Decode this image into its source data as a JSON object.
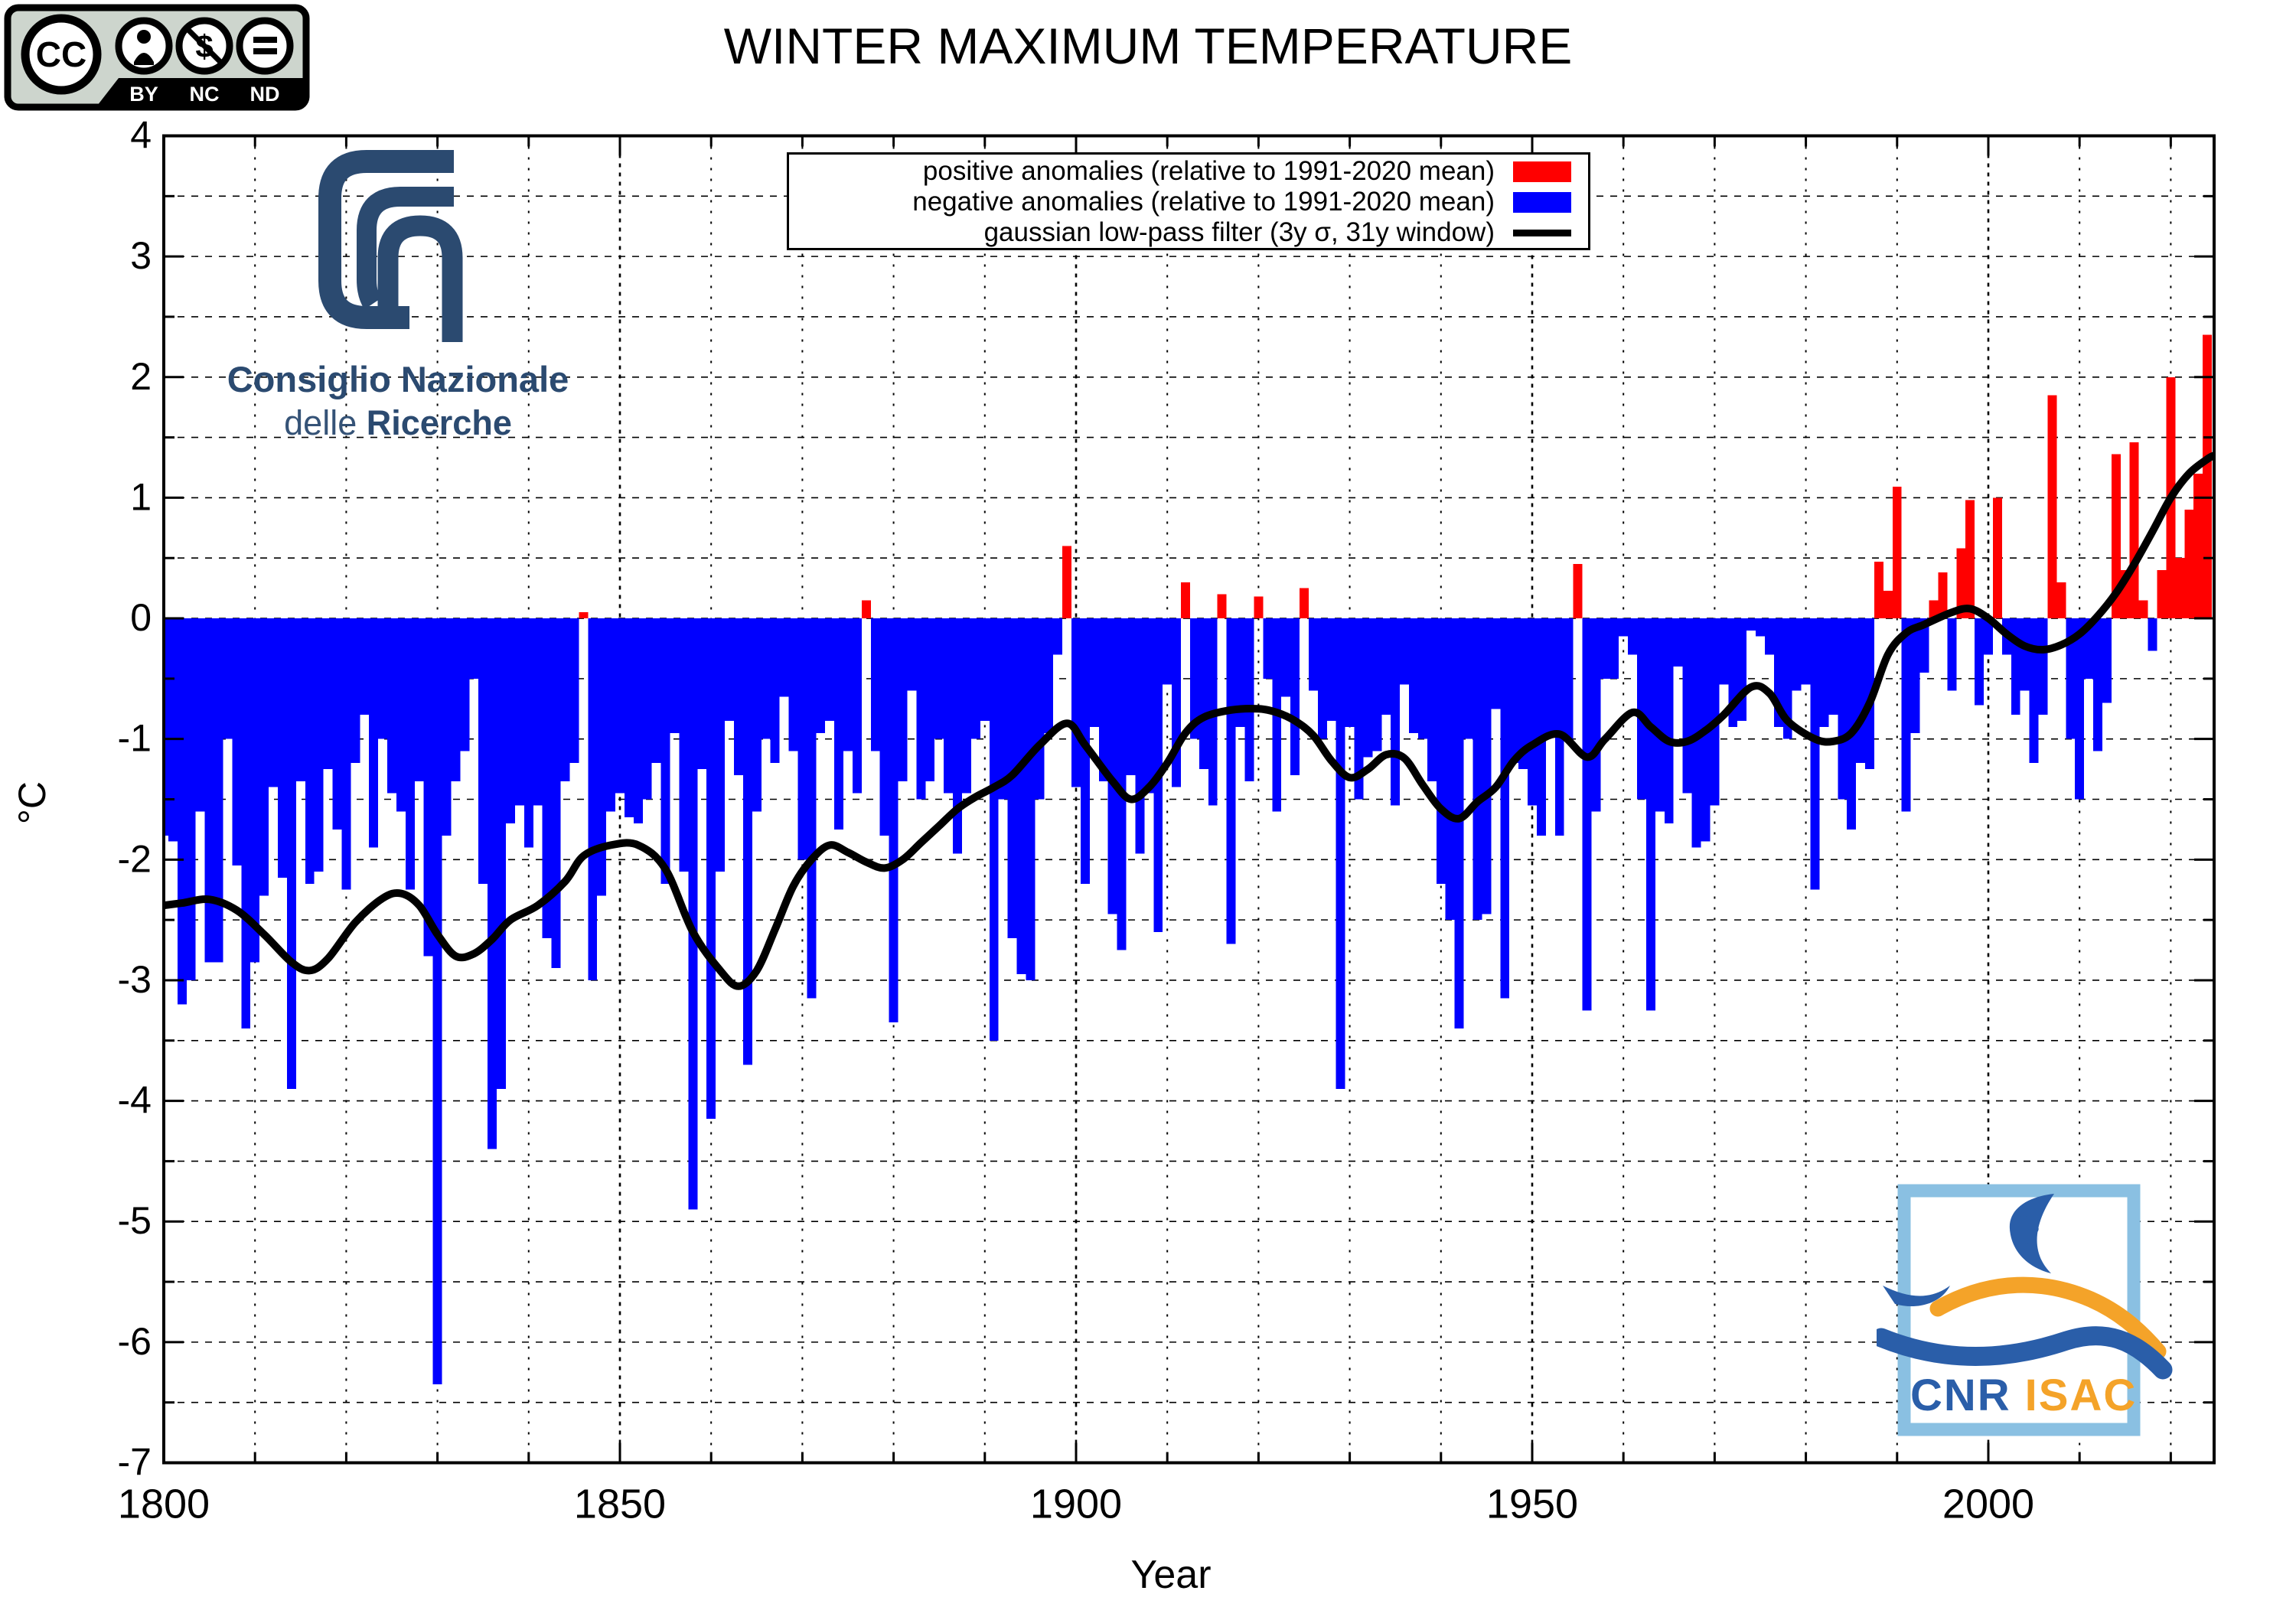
{
  "header": {
    "title": "WINTER MAXIMUM TEMPERATURE"
  },
  "license_badge": {
    "cc": "CC",
    "by": "BY",
    "nc": "NC",
    "nd": "ND"
  },
  "cnr_logo": {
    "line1": "Consiglio Nazionale",
    "line2_light": "delle",
    "line2_bold": "Ricerche"
  },
  "isac_logo": {
    "cnr": "CNR",
    "isac": "ISAC"
  },
  "axes": {
    "y_label": "°C",
    "x_label": "Year",
    "y_ticks": [
      4,
      3,
      2,
      1,
      0,
      -1,
      -2,
      -3,
      -4,
      -5,
      -6,
      -7
    ],
    "x_ticks": [
      1800,
      1850,
      1900,
      1950,
      2000
    ]
  },
  "legend": {
    "entries": [
      {
        "label": "positive anomalies (relative to 1991-2020 mean)",
        "color": "#ff0000",
        "swatch": "box"
      },
      {
        "label": "negative anomalies (relative to 1991-2020 mean)",
        "color": "#0000ff",
        "swatch": "box"
      },
      {
        "label": "gaussian low-pass filter (3y σ, 31y window)",
        "color": "#000000",
        "swatch": "line"
      }
    ]
  },
  "chart_data": {
    "type": "bar",
    "title": "WINTER MAXIMUM TEMPERATURE",
    "xlabel": "Year",
    "ylabel": "°C",
    "xlim": [
      1800,
      2024.75
    ],
    "ylim": [
      -7,
      4
    ],
    "grid": "dashed, every 0.5 °C horizontal, every 10 years vertical",
    "legend_position": "top center",
    "colors": {
      "positive": "#ff0000",
      "negative": "#0000ff",
      "filter_line": "#000000"
    },
    "year_start": 1800,
    "values": [
      -1.8,
      -1.85,
      -3.2,
      -3.0,
      -1.6,
      -2.85,
      -2.85,
      -1.0,
      -2.05,
      -3.4,
      -2.85,
      -2.3,
      -1.4,
      -2.15,
      -3.9,
      -1.35,
      -2.2,
      -2.1,
      -1.25,
      -1.75,
      -2.25,
      -1.2,
      -0.8,
      -1.9,
      -1.0,
      -1.45,
      -1.6,
      -2.25,
      -1.35,
      -2.8,
      -6.35,
      -1.8,
      -1.35,
      -1.1,
      -0.5,
      -2.2,
      -4.4,
      -3.9,
      -1.7,
      -1.55,
      -1.9,
      -1.55,
      -2.65,
      -2.9,
      -1.35,
      -1.2,
      0.05,
      -3.0,
      -2.3,
      -1.6,
      -1.45,
      -1.65,
      -1.7,
      -1.5,
      -1.2,
      -2.2,
      -0.95,
      -2.1,
      -4.9,
      -1.25,
      -4.15,
      -2.1,
      -0.85,
      -1.3,
      -3.7,
      -1.6,
      -1.0,
      -1.2,
      -0.65,
      -1.1,
      -2.0,
      -3.15,
      -0.95,
      -0.85,
      -1.75,
      -1.1,
      -1.45,
      0.15,
      -1.1,
      -1.8,
      -3.35,
      -1.35,
      -0.6,
      -1.5,
      -1.35,
      -1.0,
      -1.45,
      -1.95,
      -1.45,
      -1.0,
      -0.85,
      -3.5,
      -1.5,
      -2.65,
      -2.95,
      -3.0,
      -1.5,
      -0.95,
      -0.3,
      0.6,
      -1.4,
      -2.2,
      -0.9,
      -1.35,
      -2.45,
      -2.75,
      -1.3,
      -1.95,
      -1.45,
      -2.6,
      -0.55,
      -1.4,
      0.3,
      -1.0,
      -1.25,
      -1.55,
      0.2,
      -2.7,
      -0.9,
      -1.35,
      0.18,
      -0.5,
      -1.6,
      -0.65,
      -1.3,
      0.25,
      -0.6,
      -1.0,
      -0.85,
      -3.9,
      -0.9,
      -1.5,
      -1.15,
      -1.1,
      -0.8,
      -1.55,
      -0.55,
      -0.95,
      -1.0,
      -1.35,
      -2.2,
      -2.5,
      -3.4,
      -1.0,
      -2.5,
      -2.45,
      -0.75,
      -3.15,
      -1.2,
      -1.25,
      -1.55,
      -1.8,
      -0.95,
      -1.8,
      -1.0,
      0.45,
      -3.25,
      -1.6,
      -0.5,
      -0.5,
      -0.15,
      -0.3,
      -1.5,
      -3.25,
      -1.6,
      -1.7,
      -0.4,
      -1.45,
      -1.9,
      -1.85,
      -1.55,
      -0.55,
      -0.9,
      -0.85,
      -0.1,
      -0.15,
      -0.3,
      -0.9,
      -1.0,
      -0.6,
      -0.55,
      -2.25,
      -0.9,
      -0.8,
      -1.5,
      -1.75,
      -1.2,
      -1.25,
      0.47,
      0.23,
      1.09,
      -1.6,
      -0.95,
      -0.45,
      0.15,
      0.38,
      -0.6,
      0.58,
      0.98,
      -0.72,
      -0.3,
      1.0,
      -0.3,
      -0.8,
      -0.6,
      -1.2,
      -0.8,
      1.85,
      0.3,
      -1.0,
      -1.5,
      -0.5,
      -1.1,
      -0.7,
      1.36,
      0.4,
      1.46,
      0.15,
      -0.27,
      0.4,
      2.0,
      0.5,
      0.9,
      1.2,
      2.35
    ],
    "smoothing_curve": {
      "name": "gaussian low-pass filter (3y σ, 31y window)",
      "points": [
        [
          1800,
          -2.38
        ],
        [
          1802,
          -2.36
        ],
        [
          1805,
          -2.33
        ],
        [
          1808,
          -2.42
        ],
        [
          1811,
          -2.62
        ],
        [
          1814,
          -2.85
        ],
        [
          1816,
          -2.92
        ],
        [
          1818,
          -2.82
        ],
        [
          1821,
          -2.52
        ],
        [
          1824,
          -2.32
        ],
        [
          1826,
          -2.28
        ],
        [
          1828,
          -2.38
        ],
        [
          1830,
          -2.62
        ],
        [
          1832,
          -2.8
        ],
        [
          1834,
          -2.78
        ],
        [
          1836,
          -2.66
        ],
        [
          1838,
          -2.5
        ],
        [
          1841,
          -2.38
        ],
        [
          1844,
          -2.18
        ],
        [
          1846,
          -1.97
        ],
        [
          1849,
          -1.88
        ],
        [
          1852,
          -1.88
        ],
        [
          1855,
          -2.08
        ],
        [
          1858,
          -2.6
        ],
        [
          1861,
          -2.92
        ],
        [
          1863,
          -3.05
        ],
        [
          1865,
          -2.92
        ],
        [
          1867,
          -2.58
        ],
        [
          1869,
          -2.22
        ],
        [
          1871,
          -2.0
        ],
        [
          1873,
          -1.88
        ],
        [
          1875,
          -1.94
        ],
        [
          1877,
          -2.02
        ],
        [
          1879,
          -2.07
        ],
        [
          1881,
          -2.0
        ],
        [
          1883,
          -1.86
        ],
        [
          1885,
          -1.72
        ],
        [
          1887,
          -1.58
        ],
        [
          1889,
          -1.48
        ],
        [
          1891,
          -1.4
        ],
        [
          1893,
          -1.3
        ],
        [
          1896,
          -1.05
        ],
        [
          1899,
          -0.87
        ],
        [
          1901,
          -1.05
        ],
        [
          1904,
          -1.35
        ],
        [
          1906,
          -1.5
        ],
        [
          1908,
          -1.4
        ],
        [
          1910,
          -1.2
        ],
        [
          1912,
          -0.95
        ],
        [
          1914,
          -0.82
        ],
        [
          1917,
          -0.76
        ],
        [
          1920,
          -0.75
        ],
        [
          1922,
          -0.78
        ],
        [
          1924,
          -0.85
        ],
        [
          1926,
          -0.97
        ],
        [
          1928,
          -1.18
        ],
        [
          1930,
          -1.32
        ],
        [
          1932,
          -1.25
        ],
        [
          1934,
          -1.13
        ],
        [
          1936,
          -1.16
        ],
        [
          1938,
          -1.38
        ],
        [
          1940,
          -1.58
        ],
        [
          1942,
          -1.66
        ],
        [
          1944,
          -1.52
        ],
        [
          1946,
          -1.4
        ],
        [
          1948,
          -1.18
        ],
        [
          1950,
          -1.05
        ],
        [
          1953,
          -0.96
        ],
        [
          1956,
          -1.15
        ],
        [
          1958,
          -1.0
        ],
        [
          1961,
          -0.78
        ],
        [
          1963,
          -0.9
        ],
        [
          1965,
          -1.02
        ],
        [
          1967,
          -1.02
        ],
        [
          1969,
          -0.93
        ],
        [
          1971,
          -0.8
        ],
        [
          1974,
          -0.57
        ],
        [
          1976,
          -0.62
        ],
        [
          1978,
          -0.85
        ],
        [
          1981,
          -1.0
        ],
        [
          1983,
          -1.02
        ],
        [
          1985,
          -0.95
        ],
        [
          1987,
          -0.7
        ],
        [
          1989,
          -0.3
        ],
        [
          1991,
          -0.12
        ],
        [
          1993,
          -0.05
        ],
        [
          1996,
          0.05
        ],
        [
          1998,
          0.08
        ],
        [
          2000,
          0.0
        ],
        [
          2002,
          -0.13
        ],
        [
          2004,
          -0.23
        ],
        [
          2006,
          -0.26
        ],
        [
          2008,
          -0.22
        ],
        [
          2010,
          -0.13
        ],
        [
          2012,
          0.02
        ],
        [
          2014,
          0.21
        ],
        [
          2016,
          0.45
        ],
        [
          2018,
          0.72
        ],
        [
          2020,
          1.0
        ],
        [
          2022,
          1.2
        ],
        [
          2024,
          1.32
        ],
        [
          2024.75,
          1.35
        ]
      ]
    }
  }
}
